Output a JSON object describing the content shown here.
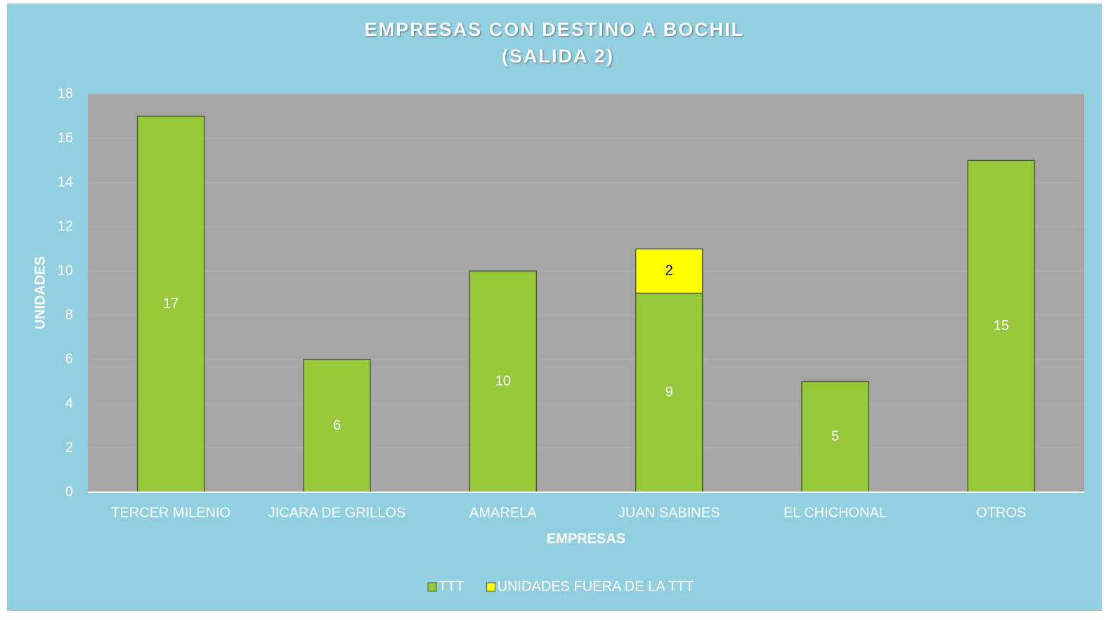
{
  "chart_data": {
    "type": "stacked_bar",
    "title": [
      "EMPRESAS CON DESTINO A BOCHIL",
      "(SALIDA 2)"
    ],
    "x_label": "EMPRESAS",
    "y_label": "UNIDADES",
    "categories": [
      "TERCER MILENIO",
      "JICARA DE GRILLOS",
      "AMARELA",
      "JUAN SABINES",
      "EL CHICHONAL",
      "OTROS"
    ],
    "series": [
      {
        "name": "TTT",
        "color": "#97c93a",
        "label_color": "#ffffff",
        "values": [
          17,
          6,
          10,
          9,
          5,
          15
        ]
      },
      {
        "name": "UNIDADES FUERA DE LA TTT",
        "color": "#ffff00",
        "label_color": "#000000",
        "values": [
          null,
          null,
          null,
          2,
          null,
          null
        ]
      }
    ],
    "ylim": [
      0,
      18
    ],
    "yticks": [
      0,
      2,
      4,
      6,
      8,
      10,
      12,
      14,
      16,
      18
    ],
    "grid": true,
    "legend": "bottom"
  }
}
